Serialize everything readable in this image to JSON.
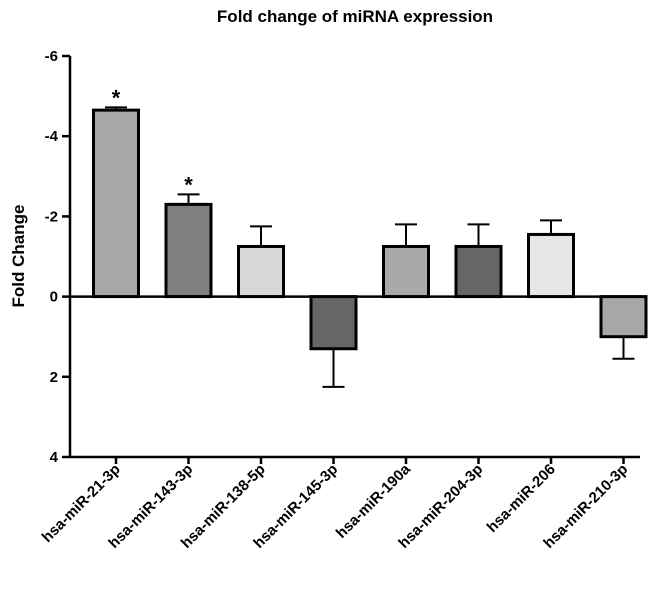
{
  "chart_data": {
    "type": "bar",
    "title": "Fold change of miRNA expression",
    "ylabel": "Fold Change",
    "xlabel": "",
    "ylim": [
      -6,
      4
    ],
    "y_inverted": true,
    "yticks": [
      -6,
      -4,
      -2,
      0,
      2,
      4
    ],
    "ytick_labels": [
      "-6",
      "-4",
      "-2",
      "0",
      "2",
      "4"
    ],
    "grid": false,
    "categories": [
      "hsa-miR-21-3p",
      "hsa-miR-143-3p",
      "hsa-miR-138-5p",
      "hsa-miR-145-3p",
      "hsa-miR-190a",
      "hsa-miR-204-3p",
      "hsa-miR-206",
      "hsa-miR-210-3p"
    ],
    "values": [
      -4.65,
      -2.3,
      -1.25,
      1.3,
      -1.25,
      -1.25,
      -1.55,
      1.0
    ],
    "error_tips": [
      -4.72,
      -2.55,
      -1.75,
      2.25,
      -1.8,
      -1.8,
      -1.9,
      1.55
    ],
    "significance": [
      "*",
      "*",
      "",
      "",
      "",
      "",
      "",
      ""
    ],
    "colors": [
      "#a7a7aa",
      "#7f7f7f",
      "#d8d8d8",
      "#666666",
      "#a9a9ab",
      "#666666",
      "#e6e6e6",
      "#a7a7aa"
    ]
  }
}
